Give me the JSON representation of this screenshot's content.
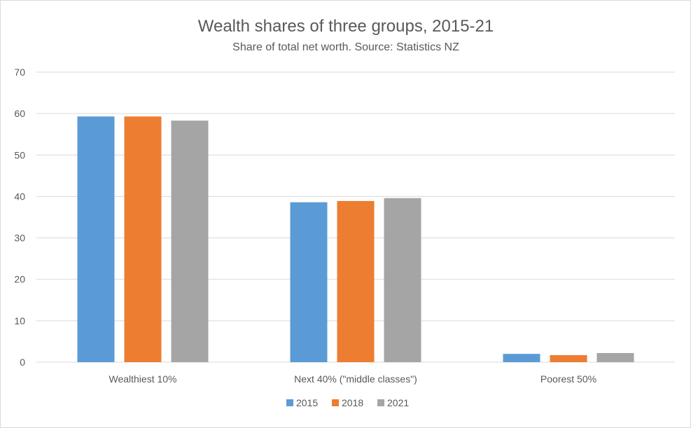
{
  "chart_data": {
    "type": "bar",
    "title": "Wealth shares of three groups, 2015-21",
    "subtitle": "Share of total net worth. Source: Statistics NZ",
    "categories": [
      "Wealthiest 10%",
      "Next 40% (\"middle classes\")",
      "Poorest 50%"
    ],
    "series": [
      {
        "name": "2015",
        "values": [
          59.3,
          38.6,
          2.0
        ],
        "color": "#5b9bd5"
      },
      {
        "name": "2018",
        "values": [
          59.3,
          38.9,
          1.7
        ],
        "color": "#ed7d31"
      },
      {
        "name": "2021",
        "values": [
          58.3,
          39.6,
          2.2
        ],
        "color": "#a5a5a5"
      }
    ],
    "ylim": [
      0,
      70
    ],
    "yticks": [
      "0",
      "10",
      "20",
      "30",
      "40",
      "50",
      "60",
      "70"
    ],
    "xlabel": "",
    "ylabel": "",
    "grid": true,
    "legend": "bottom-center"
  }
}
